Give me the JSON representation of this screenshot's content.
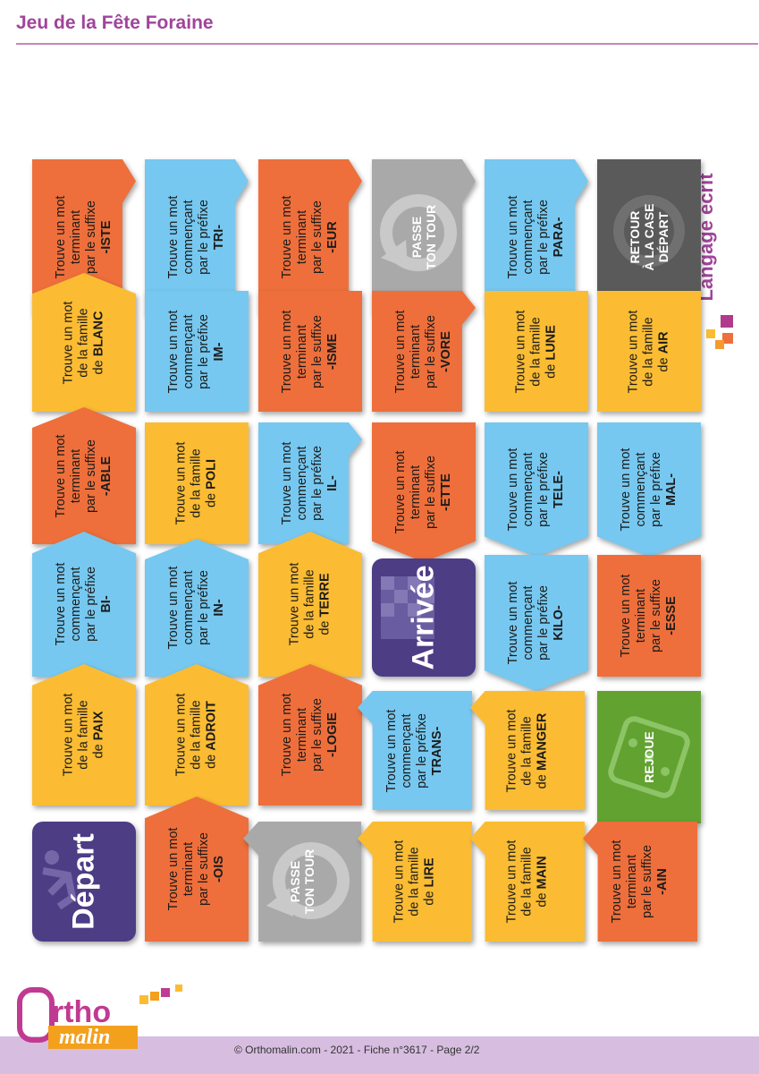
{
  "header": {
    "title": "Jeu de la Fête Foraine"
  },
  "side": {
    "label": "Langage écrit"
  },
  "footer": {
    "text": "© Orthomalin.com - 2021 - Fiche n°3617 - Page 2/2"
  },
  "logo": {
    "top": "Ortho",
    "bottom": "malin"
  },
  "special": {
    "depart": "Départ",
    "arrivee": "Arrivée",
    "passe1": "PASSE",
    "passe2": "TON TOUR",
    "retour1": "RETOUR",
    "retour2": "À LA CASE",
    "retour3": "DÉPART",
    "rejoue": "REJOUE"
  },
  "colors": {
    "orange": "#ee6f3b",
    "blue": "#76c8f0",
    "yellow": "#fbbc33",
    "gray": "#a9a9a9",
    "dark": "#5a5a5a",
    "green": "#62a231",
    "purple": "#4d3d85",
    "accent": "#a0449a"
  },
  "icons": [
    "runner-icon",
    "checkered-flag-icon",
    "arrow-circle-icon",
    "dice-icon"
  ],
  "cells": [
    {
      "l1": "Trouve un mot",
      "l2": "terminant",
      "l3": "par le suffixe",
      "w": "-ISTE"
    },
    {
      "l1": "Trouve un mot",
      "l2": "commençant",
      "l3": "par le préfixe",
      "w": "TRI-"
    },
    {
      "l1": "Trouve un mot",
      "l2": "terminant",
      "l3": "par le suffixe",
      "w": "-EUR"
    },
    {
      "l1": "Trouve un mot",
      "l2": "commençant",
      "l3": "par le préfixe",
      "w": "PARA-"
    },
    {
      "l1": "Trouve un mot",
      "l2": "de la famille",
      "l3": "de",
      "w": "BLANC"
    },
    {
      "l1": "Trouve un mot",
      "l2": "commençant",
      "l3": "par le préfixe",
      "w": "IM-"
    },
    {
      "l1": "Trouve un mot",
      "l2": "terminant",
      "l3": "par le suffixe",
      "w": "-ISME"
    },
    {
      "l1": "Trouve un mot",
      "l2": "terminant",
      "l3": "par le suffixe",
      "w": "-VORE"
    },
    {
      "l1": "Trouve un mot",
      "l2": "de la famille",
      "l3": "de",
      "w": "LUNE"
    },
    {
      "l1": "Trouve un mot",
      "l2": "de la famille",
      "l3": "de",
      "w": "AIR"
    },
    {
      "l1": "Trouve un mot",
      "l2": "terminant",
      "l3": "par le suffixe",
      "w": "-ABLE"
    },
    {
      "l1": "Trouve un mot",
      "l2": "de la famille",
      "l3": "de",
      "w": "POLI"
    },
    {
      "l1": "Trouve un mot",
      "l2": "commençant",
      "l3": "par le préfixe",
      "w": "IL-"
    },
    {
      "l1": "Trouve un mot",
      "l2": "terminant",
      "l3": "par le suffixe",
      "w": "-ETTE"
    },
    {
      "l1": "Trouve un mot",
      "l2": "commençant",
      "l3": "par le préfixe",
      "w": "TELE-"
    },
    {
      "l1": "Trouve un mot",
      "l2": "commençant",
      "l3": "par le préfixe",
      "w": "MAL-"
    },
    {
      "l1": "Trouve un mot",
      "l2": "commençant",
      "l3": "par le préfixe",
      "w": "BI-"
    },
    {
      "l1": "Trouve un mot",
      "l2": "commençant",
      "l3": "par le préfixe",
      "w": "IN-"
    },
    {
      "l1": "Trouve un mot",
      "l2": "de la famille",
      "l3": "de",
      "w": "TERRE"
    },
    {
      "l1": "Trouve un mot",
      "l2": "commençant",
      "l3": "par le préfixe",
      "w": "KILO-"
    },
    {
      "l1": "Trouve un mot",
      "l2": "terminant",
      "l3": "par le suffixe",
      "w": "-ESSE"
    },
    {
      "l1": "Trouve un mot",
      "l2": "de la famille",
      "l3": "de",
      "w": "PAIX"
    },
    {
      "l1": "Trouve un mot",
      "l2": "de la famille",
      "l3": "de",
      "w": "ADROIT"
    },
    {
      "l1": "Trouve un mot",
      "l2": "terminant",
      "l3": "par le suffixe",
      "w": "-LOGIE"
    },
    {
      "l1": "Trouve un mot",
      "l2": "commençant",
      "l3": "par le préfixe",
      "w": "TRANS-"
    },
    {
      "l1": "Trouve un mot",
      "l2": "de la famille",
      "l3": "de",
      "w": "MANGER"
    },
    {
      "l1": "Trouve un mot",
      "l2": "terminant",
      "l3": "par le suffixe",
      "w": "-OIS"
    },
    {
      "l1": "Trouve un mot",
      "l2": "de la famille",
      "l3": "de",
      "w": "LIRE"
    },
    {
      "l1": "Trouve un mot",
      "l2": "de la famille",
      "l3": "de",
      "w": "MAIN"
    },
    {
      "l1": "Trouve un mot",
      "l2": "terminant",
      "l3": "par le suffixe",
      "w": "-AIN"
    }
  ]
}
